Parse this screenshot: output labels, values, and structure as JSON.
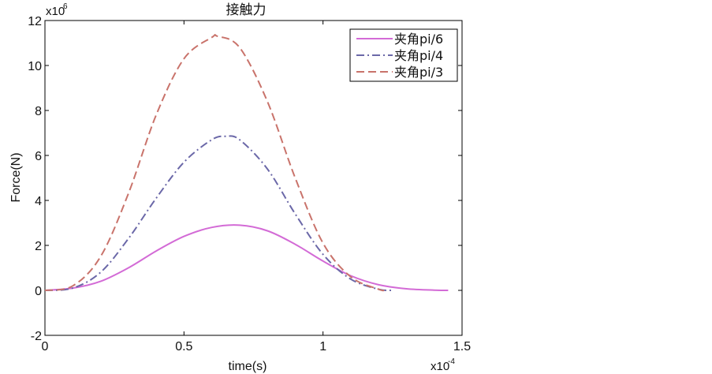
{
  "chart_data": {
    "type": "line",
    "title": "接触力",
    "xlabel": "time(s)",
    "ylabel": "Force(N)",
    "x_multiplier": {
      "base": "x10",
      "exp": "-4"
    },
    "y_multiplier": {
      "base": "x10",
      "exp": "6"
    },
    "xlim": [
      0,
      1.5
    ],
    "ylim": [
      -2,
      12
    ],
    "xticks": [
      0,
      0.5,
      1,
      1.5
    ],
    "xtick_labels": [
      "0",
      "0.5",
      "1",
      "1.5"
    ],
    "yticks": [
      -2,
      0,
      2,
      4,
      6,
      8,
      10,
      12
    ],
    "ytick_labels": [
      "-2",
      "0",
      "2",
      "4",
      "6",
      "8",
      "10",
      "12"
    ],
    "legend_position": "top-right",
    "grid": false,
    "series": [
      {
        "name": "夹角pi/6",
        "color": "#d36bd6",
        "dash": "solid",
        "x": [
          0,
          0.1,
          0.2,
          0.3,
          0.4,
          0.5,
          0.6,
          0.7,
          0.8,
          0.9,
          1.0,
          1.1,
          1.2,
          1.3,
          1.4,
          1.45
        ],
        "y": [
          0,
          0.1,
          0.4,
          1.0,
          1.75,
          2.4,
          2.8,
          2.9,
          2.65,
          2.05,
          1.3,
          0.65,
          0.25,
          0.07,
          0.01,
          0
        ]
      },
      {
        "name": "夹角pi/4",
        "color": "#6b68a8",
        "dash": "dashdot",
        "x": [
          0,
          0.1,
          0.2,
          0.3,
          0.4,
          0.5,
          0.6,
          0.65,
          0.7,
          0.8,
          0.9,
          1.0,
          1.1,
          1.2,
          1.25
        ],
        "y": [
          0,
          0.1,
          0.8,
          2.3,
          4.1,
          5.7,
          6.7,
          6.85,
          6.7,
          5.4,
          3.4,
          1.6,
          0.5,
          0.05,
          0
        ]
      },
      {
        "name": "夹角pi/3",
        "color": "#c9736b",
        "dash": "dashed",
        "x": [
          0,
          0.1,
          0.2,
          0.3,
          0.4,
          0.5,
          0.6,
          0.62,
          0.7,
          0.8,
          0.9,
          1.0,
          1.1,
          1.2,
          1.22
        ],
        "y": [
          0,
          0.2,
          1.5,
          4.3,
          7.8,
          10.3,
          11.25,
          11.3,
          10.8,
          8.4,
          5.0,
          2.1,
          0.6,
          0.05,
          0
        ]
      }
    ]
  }
}
